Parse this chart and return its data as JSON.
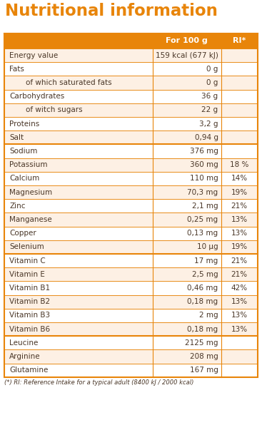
{
  "title": "Nutritional information",
  "title_color": "#E8850A",
  "header_bg": "#E8850A",
  "header_text_color": "#FFFFFF",
  "row_bg_odd": "#FDF0E4",
  "row_bg_even": "#FFFFFF",
  "border_color": "#E8850A",
  "text_color": "#4A3728",
  "footnote": "(*) RI: Reference Intake for a typical adult (8400 kJ / 2000 kcal)",
  "rows": [
    {
      "name": "Energy value",
      "value": "159 kcal (677 kJ)",
      "ri": "",
      "indent": false,
      "separator_above": false
    },
    {
      "name": "Fats",
      "value": "0 g",
      "ri": "",
      "indent": false,
      "separator_above": false
    },
    {
      "name": "of which saturated fats",
      "value": "0 g",
      "ri": "",
      "indent": true,
      "separator_above": false
    },
    {
      "name": "Carbohydrates",
      "value": "36 g",
      "ri": "",
      "indent": false,
      "separator_above": false
    },
    {
      "name": "of witch sugars",
      "value": "22 g",
      "ri": "",
      "indent": true,
      "separator_above": false
    },
    {
      "name": "Proteins",
      "value": "3,2 g",
      "ri": "",
      "indent": false,
      "separator_above": false
    },
    {
      "name": "Salt",
      "value": "0,94 g",
      "ri": "",
      "indent": false,
      "separator_above": false
    },
    {
      "name": "Sodium",
      "value": "376 mg",
      "ri": "",
      "indent": false,
      "separator_above": true
    },
    {
      "name": "Potassium",
      "value": "360 mg",
      "ri": "18 %",
      "indent": false,
      "separator_above": false
    },
    {
      "name": "Calcium",
      "value": "110 mg",
      "ri": "14%",
      "indent": false,
      "separator_above": false
    },
    {
      "name": "Magnesium",
      "value": "70,3 mg",
      "ri": "19%",
      "indent": false,
      "separator_above": false
    },
    {
      "name": "Zinc",
      "value": "2,1 mg",
      "ri": "21%",
      "indent": false,
      "separator_above": false
    },
    {
      "name": "Manganese",
      "value": "0,25 mg",
      "ri": "13%",
      "indent": false,
      "separator_above": false
    },
    {
      "name": "Copper",
      "value": "0,13 mg",
      "ri": "13%",
      "indent": false,
      "separator_above": false
    },
    {
      "name": "Selenium",
      "value": "10 μg",
      "ri": "19%",
      "indent": false,
      "separator_above": false
    },
    {
      "name": "Vitamin C",
      "value": "17 mg",
      "ri": "21%",
      "indent": false,
      "separator_above": true
    },
    {
      "name": "Vitamin E",
      "value": "2,5 mg",
      "ri": "21%",
      "indent": false,
      "separator_above": false
    },
    {
      "name": "Vitamin B1",
      "value": "0,46 mg",
      "ri": "42%",
      "indent": false,
      "separator_above": false
    },
    {
      "name": "Vitamin B2",
      "value": "0,18 mg",
      "ri": "13%",
      "indent": false,
      "separator_above": false
    },
    {
      "name": "Vitamin B3",
      "value": "2 mg",
      "ri": "13%",
      "indent": false,
      "separator_above": false
    },
    {
      "name": "Vitamin B6",
      "value": "0,18 mg",
      "ri": "13%",
      "indent": false,
      "separator_above": false
    },
    {
      "name": "Leucine",
      "value": "2125 mg",
      "ri": "",
      "indent": false,
      "separator_above": true
    },
    {
      "name": "Arginine",
      "value": "208 mg",
      "ri": "",
      "indent": false,
      "separator_above": false
    },
    {
      "name": "Glutamine",
      "value": "167 mg",
      "ri": "",
      "indent": false,
      "separator_above": false
    }
  ]
}
